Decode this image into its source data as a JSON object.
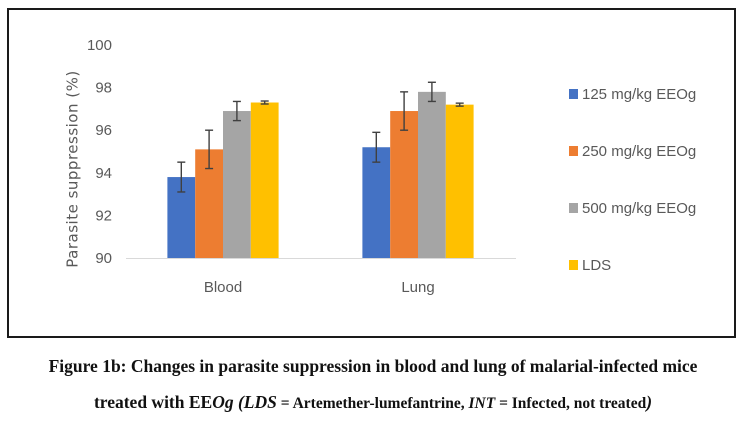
{
  "chart_data": {
    "type": "bar",
    "title": "",
    "xlabel": "",
    "ylabel": "Parasite suppression (%)",
    "ylim": [
      90,
      100
    ],
    "yticks": [
      90,
      92,
      94,
      96,
      98,
      100
    ],
    "ytick_labels": [
      "90",
      "92",
      "94",
      "96",
      "98",
      "100"
    ],
    "grid": false,
    "legend_position": "right",
    "categories": [
      "Blood",
      "Lung"
    ],
    "series": [
      {
        "name": "125 mg/kg EEOg",
        "color": "#4472C4",
        "values": [
          93.8,
          95.2
        ],
        "errors": [
          0.7,
          0.7
        ]
      },
      {
        "name": "250 mg/kg EEOg",
        "color": "#ED7D31",
        "values": [
          95.1,
          96.9
        ],
        "errors": [
          0.9,
          0.9
        ]
      },
      {
        "name": "500 mg/kg EEOg",
        "color": "#A5A5A5",
        "values": [
          96.9,
          97.8
        ],
        "errors": [
          0.45,
          0.45
        ]
      },
      {
        "name": "LDS",
        "color": "#FFC000",
        "values": [
          97.3,
          97.2
        ],
        "errors": [
          0.07,
          0.07
        ]
      }
    ]
  },
  "caption": {
    "line1": "Figure 1b: Changes in parasite suppression in blood and lung of malarial-infected mice",
    "line2_part1": "treated with EE",
    "line2_part2_italic": "Og (LDS",
    "line2_part3": " = Artemether-lumefantrine, ",
    "line2_part4_italic": "INT",
    "line2_part5": " = Infected, not treated",
    "line2_part6_italic": ")"
  }
}
